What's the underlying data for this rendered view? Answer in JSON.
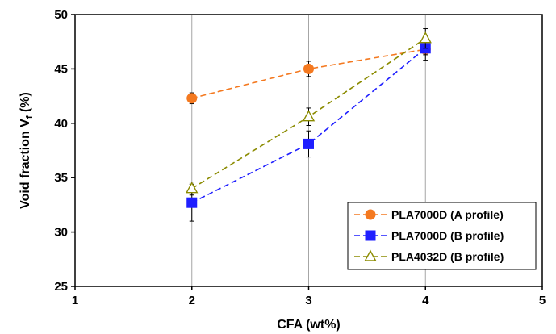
{
  "chart_data": {
    "type": "line",
    "xlabel": "CFA (wt%)",
    "ylabel_main": "Void fraction V",
    "ylabel_sub": "f",
    "ylabel_unit": " (%)",
    "xlim": [
      1,
      5
    ],
    "ylim": [
      25,
      50
    ],
    "x_ticks": [
      "1",
      "2",
      "3",
      "4",
      "5"
    ],
    "y_ticks": [
      "25",
      "30",
      "35",
      "40",
      "45",
      "50"
    ],
    "grid": "vertical",
    "legend_position": "bottom-right",
    "series": [
      {
        "name": "PLA7000D (A profile)",
        "color": "#f47920",
        "marker": "circle",
        "x": [
          2,
          3,
          4
        ],
        "y": [
          42.3,
          45.0,
          46.8
        ],
        "err": [
          0.5,
          0.7,
          1.0
        ]
      },
      {
        "name": "PLA7000D (B profile)",
        "color": "#1f1fff",
        "marker": "square",
        "x": [
          2,
          3,
          4
        ],
        "y": [
          32.7,
          38.1,
          46.9
        ],
        "err": [
          1.7,
          1.2,
          0.6
        ]
      },
      {
        "name": "PLA4032D (B profile)",
        "color": "#8b8b00",
        "marker": "triangle-open",
        "x": [
          2,
          3,
          4
        ],
        "y": [
          34.0,
          40.6,
          47.8
        ],
        "err": [
          0.6,
          0.8,
          0.9
        ]
      }
    ]
  }
}
